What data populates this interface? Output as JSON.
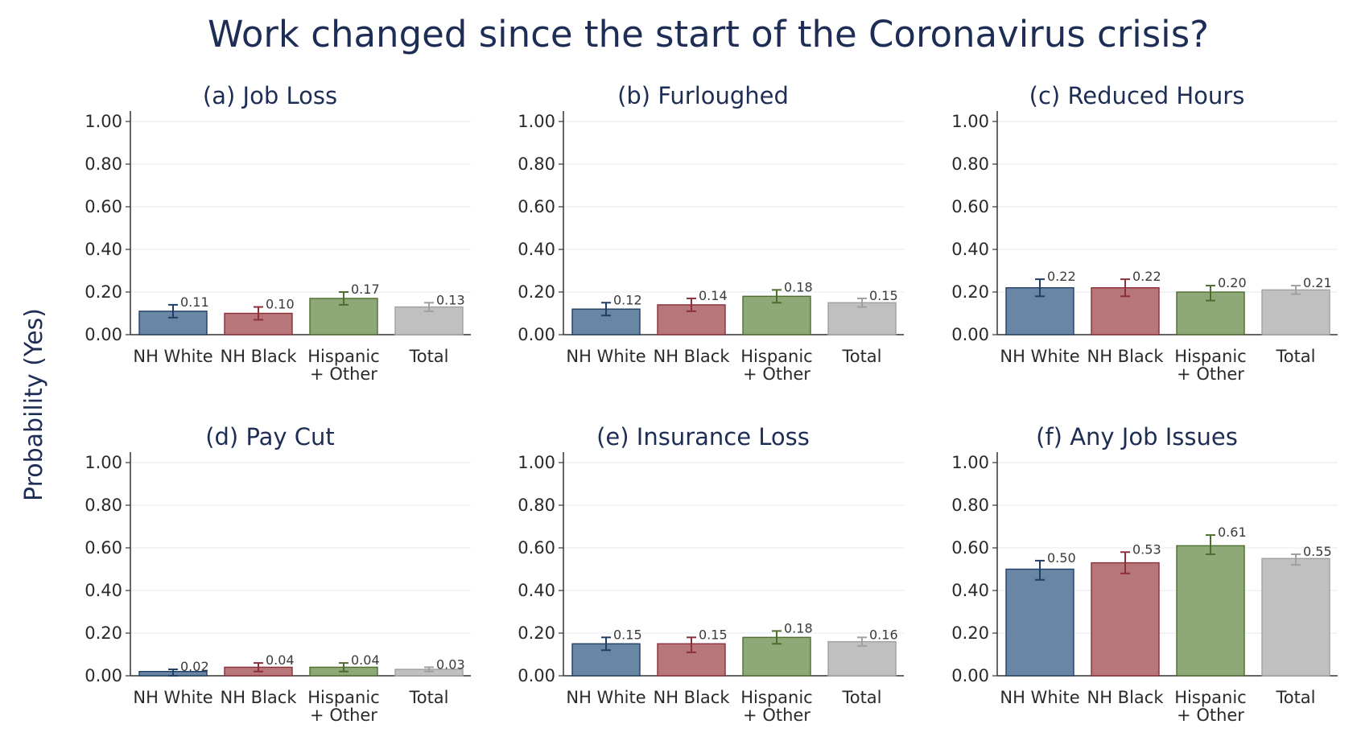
{
  "title": "Work changed since the start of the Coronavirus crisis?",
  "ylabel": "Probability (Yes)",
  "colors": {
    "NH White": {
      "fill": "#6a86a5",
      "stroke": "#1f3f66"
    },
    "NH Black": {
      "fill": "#b7767a",
      "stroke": "#8c2f39"
    },
    "Hispanic + Other": {
      "fill": "#8fa878",
      "stroke": "#4f6d2e"
    },
    "Total": {
      "fill": "#c0c0c0",
      "stroke": "#a0a0a0"
    }
  },
  "chart_data": [
    {
      "type": "bar",
      "title": "(a) Job Loss",
      "categories": [
        "NH White",
        "NH Black",
        "Hispanic + Other",
        "Total"
      ],
      "category_lines": [
        [
          "NH White"
        ],
        [
          "NH Black"
        ],
        [
          "Hispanic",
          "+ Other"
        ],
        [
          "Total"
        ]
      ],
      "values": [
        0.11,
        0.1,
        0.17,
        0.13
      ],
      "labels": [
        "0.11",
        "0.10",
        "0.17",
        "0.13"
      ],
      "ci_low": [
        0.08,
        0.07,
        0.14,
        0.11
      ],
      "ci_high": [
        0.14,
        0.13,
        0.2,
        0.15
      ],
      "ylim": [
        0,
        1
      ],
      "yticks": [
        "0.00",
        "0.20",
        "0.40",
        "0.60",
        "0.80",
        "1.00"
      ]
    },
    {
      "type": "bar",
      "title": "(b) Furloughed",
      "categories": [
        "NH White",
        "NH Black",
        "Hispanic + Other",
        "Total"
      ],
      "category_lines": [
        [
          "NH White"
        ],
        [
          "NH Black"
        ],
        [
          "Hispanic",
          "+ Other"
        ],
        [
          "Total"
        ]
      ],
      "values": [
        0.12,
        0.14,
        0.18,
        0.15
      ],
      "labels": [
        "0.12",
        "0.14",
        "0.18",
        "0.15"
      ],
      "ci_low": [
        0.09,
        0.11,
        0.15,
        0.13
      ],
      "ci_high": [
        0.15,
        0.17,
        0.21,
        0.17
      ],
      "ylim": [
        0,
        1
      ],
      "yticks": [
        "0.00",
        "0.20",
        "0.40",
        "0.60",
        "0.80",
        "1.00"
      ]
    },
    {
      "type": "bar",
      "title": "(c) Reduced Hours",
      "categories": [
        "NH White",
        "NH Black",
        "Hispanic + Other",
        "Total"
      ],
      "category_lines": [
        [
          "NH White"
        ],
        [
          "NH Black"
        ],
        [
          "Hispanic",
          "+ Other"
        ],
        [
          "Total"
        ]
      ],
      "values": [
        0.22,
        0.22,
        0.2,
        0.21
      ],
      "labels": [
        "0.22",
        "0.22",
        "0.20",
        "0.21"
      ],
      "ci_low": [
        0.18,
        0.18,
        0.16,
        0.19
      ],
      "ci_high": [
        0.26,
        0.26,
        0.23,
        0.23
      ],
      "ylim": [
        0,
        1
      ],
      "yticks": [
        "0.00",
        "0.20",
        "0.40",
        "0.60",
        "0.80",
        "1.00"
      ]
    },
    {
      "type": "bar",
      "title": "(d) Pay Cut",
      "categories": [
        "NH White",
        "NH Black",
        "Hispanic + Other",
        "Total"
      ],
      "category_lines": [
        [
          "NH White"
        ],
        [
          "NH Black"
        ],
        [
          "Hispanic",
          "+ Other"
        ],
        [
          "Total"
        ]
      ],
      "values": [
        0.02,
        0.04,
        0.04,
        0.03
      ],
      "labels": [
        "0.02",
        "0.04",
        "0.04",
        "0.03"
      ],
      "ci_low": [
        0.0,
        0.02,
        0.02,
        0.02
      ],
      "ci_high": [
        0.03,
        0.06,
        0.06,
        0.04
      ],
      "ylim": [
        0,
        1
      ],
      "yticks": [
        "0.00",
        "0.20",
        "0.40",
        "0.60",
        "0.80",
        "1.00"
      ]
    },
    {
      "type": "bar",
      "title": "(e) Insurance Loss",
      "categories": [
        "NH White",
        "NH Black",
        "Hispanic + Other",
        "Total"
      ],
      "category_lines": [
        [
          "NH White"
        ],
        [
          "NH Black"
        ],
        [
          "Hispanic",
          "+ Other"
        ],
        [
          "Total"
        ]
      ],
      "values": [
        0.15,
        0.15,
        0.18,
        0.16
      ],
      "labels": [
        "0.15",
        "0.15",
        "0.18",
        "0.16"
      ],
      "ci_low": [
        0.12,
        0.11,
        0.15,
        0.14
      ],
      "ci_high": [
        0.18,
        0.18,
        0.21,
        0.18
      ],
      "ylim": [
        0,
        1
      ],
      "yticks": [
        "0.00",
        "0.20",
        "0.40",
        "0.60",
        "0.80",
        "1.00"
      ]
    },
    {
      "type": "bar",
      "title": "(f) Any Job Issues",
      "categories": [
        "NH White",
        "NH Black",
        "Hispanic + Other",
        "Total"
      ],
      "category_lines": [
        [
          "NH White"
        ],
        [
          "NH Black"
        ],
        [
          "Hispanic",
          "+ Other"
        ],
        [
          "Total"
        ]
      ],
      "values": [
        0.5,
        0.53,
        0.61,
        0.55
      ],
      "labels": [
        "0.50",
        "0.53",
        "0.61",
        "0.55"
      ],
      "ci_low": [
        0.45,
        0.48,
        0.57,
        0.52
      ],
      "ci_high": [
        0.54,
        0.58,
        0.66,
        0.57
      ],
      "ylim": [
        0,
        1
      ],
      "yticks": [
        "0.00",
        "0.20",
        "0.40",
        "0.60",
        "0.80",
        "1.00"
      ]
    }
  ]
}
